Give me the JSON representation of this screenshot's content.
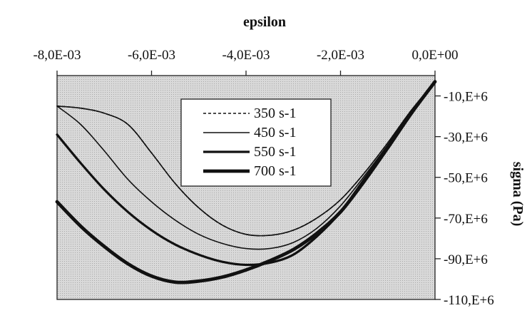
{
  "chart_data": {
    "type": "line",
    "xlabel": "epsilon",
    "ylabel": "sigma (Pa)",
    "xlim": [
      -0.008,
      0.0
    ],
    "ylim": [
      -110000000,
      0
    ],
    "x_ticks": [
      -0.008,
      -0.006,
      -0.004,
      -0.002,
      0.0
    ],
    "x_tick_labels": [
      "-8,0E-03",
      "-6,0E-03",
      "-4,0E-03",
      "-2,0E-03",
      "0,0E+00"
    ],
    "y_ticks": [
      -10000000,
      -30000000,
      -50000000,
      -70000000,
      -90000000,
      -110000000
    ],
    "y_tick_labels": [
      "-10,E+6",
      "-30,E+6",
      "-50,E+6",
      "-70,E+6",
      "-90,E+6",
      "-110,E+6"
    ],
    "x_axis_position": "top",
    "y_axis_position": "right",
    "background": "#d6d6d6",
    "grid": false,
    "legend_position": "top-center",
    "series": [
      {
        "name": "350 s-1",
        "style": "dotted",
        "x": [
          -0.008,
          -0.0075,
          -0.007,
          -0.0065,
          -0.006,
          -0.0055,
          -0.005,
          -0.0045,
          -0.004,
          -0.0035,
          -0.003,
          -0.0025,
          -0.002,
          -0.0015,
          -0.001,
          -0.0005,
          0.0
        ],
        "y": [
          -15000000,
          -16000000,
          -18500000,
          -24000000,
          -38000000,
          -53000000,
          -65000000,
          -73500000,
          -78000000,
          -78500000,
          -76000000,
          -70000000,
          -61000000,
          -48000000,
          -33000000,
          -17000000,
          -3000000
        ]
      },
      {
        "name": "450 s-1",
        "style": "thin",
        "x": [
          -0.008,
          -0.0075,
          -0.007,
          -0.0065,
          -0.006,
          -0.0055,
          -0.005,
          -0.0045,
          -0.004,
          -0.0035,
          -0.003,
          -0.0025,
          -0.002,
          -0.0015,
          -0.001,
          -0.0005,
          0.0
        ],
        "y": [
          -15000000,
          -16000000,
          -18500000,
          -24000000,
          -38000000,
          -53000000,
          -65000000,
          -73500000,
          -78000000,
          -78500000,
          -76000000,
          -70000000,
          -61000000,
          -48000000,
          -33000000,
          -17000000,
          -3000000
        ]
      },
      {
        "name": "550 s-1",
        "style": "thick",
        "x": [
          -0.008,
          -0.0075,
          -0.007,
          -0.0065,
          -0.006,
          -0.0055,
          -0.005,
          -0.0045,
          -0.004,
          -0.0035,
          -0.003,
          -0.0025,
          -0.002,
          -0.0015,
          -0.001,
          -0.0005,
          0.0
        ],
        "y": [
          -29000000,
          -43000000,
          -56000000,
          -67000000,
          -76000000,
          -83000000,
          -88000000,
          -91500000,
          -93000000,
          -92000000,
          -88000000,
          -79000000,
          -67000000,
          -51000000,
          -35000000,
          -18000000,
          -3000000
        ]
      },
      {
        "name": "700 s-1",
        "style": "extra-thick",
        "x": [
          -0.008,
          -0.0075,
          -0.007,
          -0.0065,
          -0.006,
          -0.0055,
          -0.005,
          -0.0045,
          -0.004,
          -0.0035,
          -0.003,
          -0.0025,
          -0.002,
          -0.0015,
          -0.001,
          -0.0005,
          0.0
        ],
        "y": [
          -62000000,
          -74000000,
          -84000000,
          -92500000,
          -98500000,
          -101500000,
          -101000000,
          -99000000,
          -95500000,
          -91000000,
          -85500000,
          -77500000,
          -67000000,
          -52000000,
          -35500000,
          -18500000,
          -3000000
        ]
      }
    ],
    "extra_series_note": ""
  },
  "secondary_curve": {
    "name": "",
    "x": [
      -0.008,
      -0.0075,
      -0.007,
      -0.0065,
      -0.006,
      -0.0055,
      -0.005,
      -0.0045,
      -0.004,
      -0.0035,
      -0.003,
      -0.0025,
      -0.002,
      -0.0015,
      -0.001,
      -0.0005,
      0.0
    ],
    "y": [
      -15000000,
      -24000000,
      -37000000,
      -51000000,
      -62000000,
      -71000000,
      -78000000,
      -82500000,
      -85000000,
      -85000000,
      -82000000,
      -75000000,
      -64000000,
      -49500000,
      -34000000,
      -17500000,
      -3000000
    ]
  }
}
